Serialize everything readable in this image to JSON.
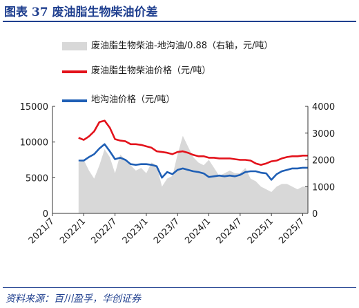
{
  "header": {
    "title": "图表 37    废油脂生物柴油价差"
  },
  "source": "资料来源：百川盈孚，华创证券",
  "chart_data": {
    "type": "line",
    "title": "图表 37    废油脂生物柴油价差",
    "xlabel": "",
    "ylabel": "",
    "x_ticks": [
      "2021/7",
      "2022/1",
      "2022/7",
      "2023/1",
      "2023/7",
      "2024/1",
      "2024/7",
      "2025/1",
      "2025/7"
    ],
    "y_left_ticks": [
      "0",
      "5000",
      "10000",
      "15000"
    ],
    "y_right_ticks": [
      "0",
      "1000",
      "2000",
      "3000",
      "4000"
    ],
    "ylim_left": [
      0,
      15000
    ],
    "ylim_right": [
      0,
      4000
    ],
    "x_range": [
      "2021/7",
      "2025/8"
    ],
    "grid": false,
    "legend_position": "top",
    "series": [
      {
        "name": "废油脂生物柴油-地沟油/0.88（右轴，元/吨）",
        "axis": "right",
        "type": "area",
        "color": "#d8d8d8",
        "x": [
          "2021/12",
          "2022/1",
          "2022/2",
          "2022/3",
          "2022/4",
          "2022/5",
          "2022/6",
          "2022/7",
          "2022/8",
          "2022/9",
          "2022/10",
          "2022/11",
          "2022/12",
          "2023/1",
          "2023/2",
          "2023/3",
          "2023/4",
          "2023/5",
          "2023/6",
          "2023/7",
          "2023/8",
          "2023/9",
          "2023/10",
          "2023/11",
          "2023/12",
          "2024/1",
          "2024/2",
          "2024/3",
          "2024/4",
          "2024/5",
          "2024/6",
          "2024/7",
          "2024/8",
          "2024/9",
          "2024/10",
          "2024/11",
          "2024/12",
          "2025/1",
          "2025/2",
          "2025/3",
          "2025/4",
          "2025/5",
          "2025/6",
          "2025/7",
          "2025/8"
        ],
        "values": [
          1900,
          2000,
          1600,
          1300,
          1800,
          2400,
          2100,
          1500,
          2200,
          2000,
          1800,
          1600,
          1700,
          1500,
          1900,
          1800,
          1000,
          1300,
          1400,
          2200,
          2900,
          2500,
          2100,
          1900,
          1800,
          2000,
          1700,
          1400,
          1500,
          1600,
          1500,
          1500,
          1700,
          1300,
          1200,
          1000,
          900,
          800,
          1000,
          1100,
          1100,
          1000,
          900,
          1000,
          1000
        ]
      },
      {
        "name": "废油脂生物柴油价格（元/吨）",
        "axis": "left",
        "type": "line",
        "color": "#e3121b",
        "x": [
          "2021/12",
          "2022/1",
          "2022/2",
          "2022/3",
          "2022/4",
          "2022/5",
          "2022/6",
          "2022/7",
          "2022/8",
          "2022/9",
          "2022/10",
          "2022/11",
          "2022/12",
          "2023/1",
          "2023/2",
          "2023/3",
          "2023/4",
          "2023/5",
          "2023/6",
          "2023/7",
          "2023/8",
          "2023/9",
          "2023/10",
          "2023/11",
          "2023/12",
          "2024/1",
          "2024/2",
          "2024/3",
          "2024/4",
          "2024/5",
          "2024/6",
          "2024/7",
          "2024/8",
          "2024/9",
          "2024/10",
          "2024/11",
          "2024/12",
          "2025/1",
          "2025/2",
          "2025/3",
          "2025/4",
          "2025/5",
          "2025/6",
          "2025/7",
          "2025/8"
        ],
        "values": [
          10600,
          10300,
          10800,
          11500,
          12800,
          13000,
          12000,
          10400,
          10200,
          10100,
          9700,
          9700,
          9600,
          9400,
          9200,
          8700,
          8600,
          8500,
          8300,
          8600,
          8700,
          8500,
          8200,
          8000,
          8000,
          7800,
          7800,
          7700,
          7700,
          7700,
          7600,
          7500,
          7500,
          7400,
          7000,
          6800,
          7000,
          7300,
          7400,
          7700,
          7900,
          8000,
          8000,
          8100,
          8100
        ]
      },
      {
        "name": "地沟油价格（元/吨）",
        "axis": "left",
        "type": "line",
        "color": "#1f5fb5",
        "x": [
          "2021/12",
          "2022/1",
          "2022/2",
          "2022/3",
          "2022/4",
          "2022/5",
          "2022/6",
          "2022/7",
          "2022/8",
          "2022/9",
          "2022/10",
          "2022/11",
          "2022/12",
          "2023/1",
          "2023/2",
          "2023/3",
          "2023/4",
          "2023/5",
          "2023/6",
          "2023/7",
          "2023/8",
          "2023/9",
          "2023/10",
          "2023/11",
          "2023/12",
          "2024/1",
          "2024/2",
          "2024/3",
          "2024/4",
          "2024/5",
          "2024/6",
          "2024/7",
          "2024/8",
          "2024/9",
          "2024/10",
          "2024/11",
          "2024/12",
          "2025/1",
          "2025/2",
          "2025/3",
          "2025/4",
          "2025/5",
          "2025/6",
          "2025/7",
          "2025/8"
        ],
        "values": [
          7400,
          7400,
          7900,
          8300,
          9100,
          9700,
          8700,
          7600,
          7800,
          7500,
          6900,
          6800,
          6900,
          6900,
          6800,
          6600,
          5000,
          5800,
          5500,
          6100,
          6300,
          6100,
          5900,
          5800,
          5600,
          5100,
          5200,
          5300,
          5200,
          5300,
          5200,
          5400,
          5800,
          5900,
          5900,
          5700,
          5600,
          4700,
          5500,
          5900,
          6100,
          6300,
          6300,
          6400,
          6400
        ]
      }
    ]
  }
}
